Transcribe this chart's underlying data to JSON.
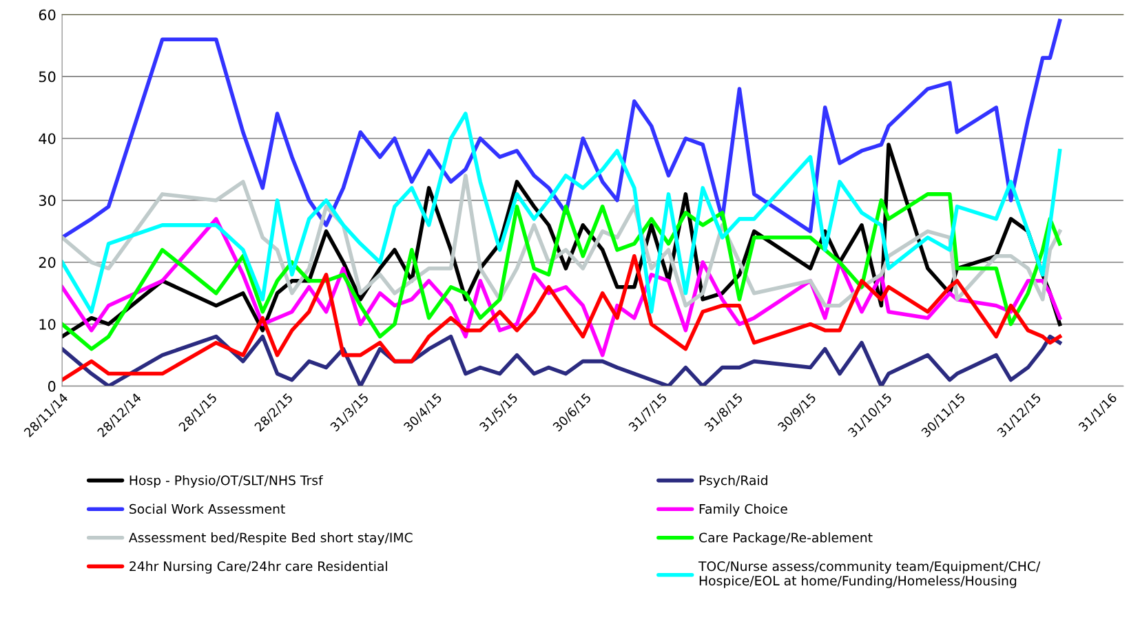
{
  "chart_data": {
    "type": "line",
    "x": [
      "2014-11-28",
      "2014-12-10",
      "2014-12-17",
      "2015-01-08",
      "2015-01-30",
      "2015-02-10",
      "2015-02-18",
      "2015-02-24",
      "2015-03-02",
      "2015-03-09",
      "2015-03-16",
      "2015-03-23",
      "2015-03-30",
      "2015-04-07",
      "2015-04-13",
      "2015-04-20",
      "2015-04-27",
      "2015-05-06",
      "2015-05-12",
      "2015-05-18",
      "2015-05-26",
      "2015-06-02",
      "2015-06-09",
      "2015-06-15",
      "2015-06-22",
      "2015-06-29",
      "2015-07-07",
      "2015-07-13",
      "2015-07-20",
      "2015-07-27",
      "2015-08-03",
      "2015-08-10",
      "2015-08-17",
      "2015-08-25",
      "2015-09-01",
      "2015-09-07",
      "2015-09-30",
      "2015-10-06",
      "2015-10-12",
      "2015-10-21",
      "2015-10-29",
      "2015-11-01",
      "2015-11-17",
      "2015-11-26",
      "2015-11-29",
      "2015-12-15",
      "2015-12-21",
      "2015-12-28",
      "2016-01-03",
      "2016-01-06",
      "2016-01-10"
    ],
    "series": [
      {
        "name": "Hosp - Physio/OT/SLT/NHS Trsf",
        "color": "#000000",
        "values": [
          8,
          11,
          10,
          17,
          13,
          15,
          9,
          15,
          17,
          17,
          25,
          20,
          14,
          19,
          22,
          17,
          32,
          22,
          14,
          19,
          23,
          33,
          29,
          26,
          19,
          26,
          22,
          16,
          16,
          26,
          17,
          31,
          14,
          15,
          18,
          25,
          19,
          25,
          20,
          26,
          13,
          39,
          19,
          15,
          19,
          21,
          27,
          25,
          18,
          15,
          10
        ]
      },
      {
        "name": "Psych/Raid",
        "color": "#2b2b80",
        "values": [
          6,
          2,
          0,
          5,
          8,
          4,
          8,
          2,
          1,
          4,
          3,
          6,
          0,
          6,
          4,
          4,
          6,
          8,
          2,
          3,
          2,
          5,
          2,
          3,
          2,
          4,
          4,
          3,
          2,
          1,
          0,
          3,
          0,
          3,
          3,
          4,
          3,
          6,
          2,
          7,
          0,
          2,
          5,
          1,
          2,
          5,
          1,
          3,
          6,
          8,
          7
        ]
      },
      {
        "name": "Social Work Assessment",
        "color": "#3333ff",
        "values": [
          24,
          27,
          29,
          56,
          56,
          41,
          32,
          44,
          37,
          30,
          26,
          32,
          41,
          37,
          40,
          33,
          38,
          33,
          35,
          40,
          37,
          38,
          34,
          32,
          28,
          40,
          33,
          30,
          46,
          42,
          34,
          40,
          39,
          27,
          48,
          31,
          25,
          45,
          36,
          38,
          39,
          42,
          48,
          49,
          41,
          45,
          30,
          43,
          53,
          53,
          59
        ]
      },
      {
        "name": "Family Choice",
        "color": "#ff00ff",
        "values": [
          16,
          9,
          13,
          17,
          27,
          18,
          10,
          11,
          12,
          16,
          12,
          19,
          10,
          15,
          13,
          14,
          17,
          13,
          8,
          17,
          9,
          10,
          18,
          15,
          16,
          13,
          5,
          13,
          11,
          18,
          17,
          9,
          20,
          14,
          10,
          11,
          17,
          11,
          20,
          12,
          18,
          12,
          11,
          15,
          14,
          13,
          12,
          17,
          17,
          15,
          11
        ]
      },
      {
        "name": "Assessment bed/Respite Bed short stay/IMC",
        "color": "#c0cbcb",
        "values": [
          24,
          20,
          19,
          31,
          30,
          33,
          24,
          22,
          15,
          19,
          29,
          26,
          15,
          18,
          15,
          17,
          19,
          19,
          34,
          19,
          14,
          19,
          26,
          20,
          22,
          19,
          25,
          24,
          29,
          19,
          22,
          13,
          15,
          26,
          20,
          15,
          17,
          13,
          13,
          16,
          18,
          21,
          25,
          24,
          14,
          21,
          21,
          19,
          14,
          22,
          25
        ]
      },
      {
        "name": "Care Package/Re-ablement",
        "color": "#00ff00",
        "values": [
          10,
          6,
          8,
          22,
          15,
          21,
          12,
          17,
          20,
          17,
          17,
          18,
          13,
          8,
          10,
          22,
          11,
          16,
          15,
          11,
          14,
          29,
          19,
          18,
          29,
          21,
          29,
          22,
          23,
          27,
          23,
          28,
          26,
          28,
          14,
          24,
          24,
          22,
          20,
          16,
          30,
          27,
          31,
          31,
          19,
          19,
          10,
          15,
          22,
          27,
          23
        ]
      },
      {
        "name": "24hr Nursing Care/24hr care Residential",
        "color": "#ff0000",
        "values": [
          1,
          4,
          2,
          2,
          7,
          5,
          11,
          5,
          9,
          12,
          18,
          5,
          5,
          7,
          4,
          4,
          8,
          11,
          9,
          9,
          12,
          9,
          12,
          16,
          12,
          8,
          15,
          11,
          21,
          10,
          8,
          6,
          12,
          13,
          13,
          7,
          10,
          9,
          9,
          17,
          14,
          16,
          12,
          16,
          17,
          8,
          13,
          9,
          8,
          7,
          8
        ]
      },
      {
        "name": "TOC/Nurse assess/community team/Equipment/CHC/\nHospice/EOL at home/Funding/Homeless/Housing",
        "color": "#00ffff",
        "values": [
          20,
          12,
          23,
          26,
          26,
          22,
          14,
          30,
          18,
          27,
          30,
          26,
          23,
          20,
          29,
          32,
          26,
          40,
          44,
          33,
          22,
          31,
          27,
          30,
          34,
          32,
          35,
          38,
          32,
          12,
          31,
          15,
          32,
          24,
          27,
          27,
          37,
          22,
          33,
          28,
          26,
          19,
          24,
          22,
          29,
          27,
          33,
          25,
          18,
          26,
          38
        ]
      }
    ],
    "xlim": [
      "2014-11-28",
      "2016-02-05"
    ],
    "xticks": [
      {
        "value": "2014-11-28",
        "label": "28/11/14"
      },
      {
        "value": "2014-12-28",
        "label": "28/12/14"
      },
      {
        "value": "2015-01-28",
        "label": "28/1/15"
      },
      {
        "value": "2015-02-28",
        "label": "28/2/15"
      },
      {
        "value": "2015-03-31",
        "label": "31/3/15"
      },
      {
        "value": "2015-04-30",
        "label": "30/4/15"
      },
      {
        "value": "2015-05-31",
        "label": "31/5/15"
      },
      {
        "value": "2015-06-30",
        "label": "30/6/15"
      },
      {
        "value": "2015-07-31",
        "label": "31/7/15"
      },
      {
        "value": "2015-08-31",
        "label": "31/8/15"
      },
      {
        "value": "2015-09-30",
        "label": "30/9/15"
      },
      {
        "value": "2015-10-31",
        "label": "31/10/15"
      },
      {
        "value": "2015-11-30",
        "label": "30/11/15"
      },
      {
        "value": "2015-12-31",
        "label": "31/12/15"
      },
      {
        "value": "2016-01-31",
        "label": "31/1/16"
      }
    ],
    "ylim": [
      0,
      60
    ],
    "yticks": [
      0,
      10,
      20,
      30,
      40,
      50,
      60
    ],
    "grid": "y",
    "legend": "bottom"
  }
}
